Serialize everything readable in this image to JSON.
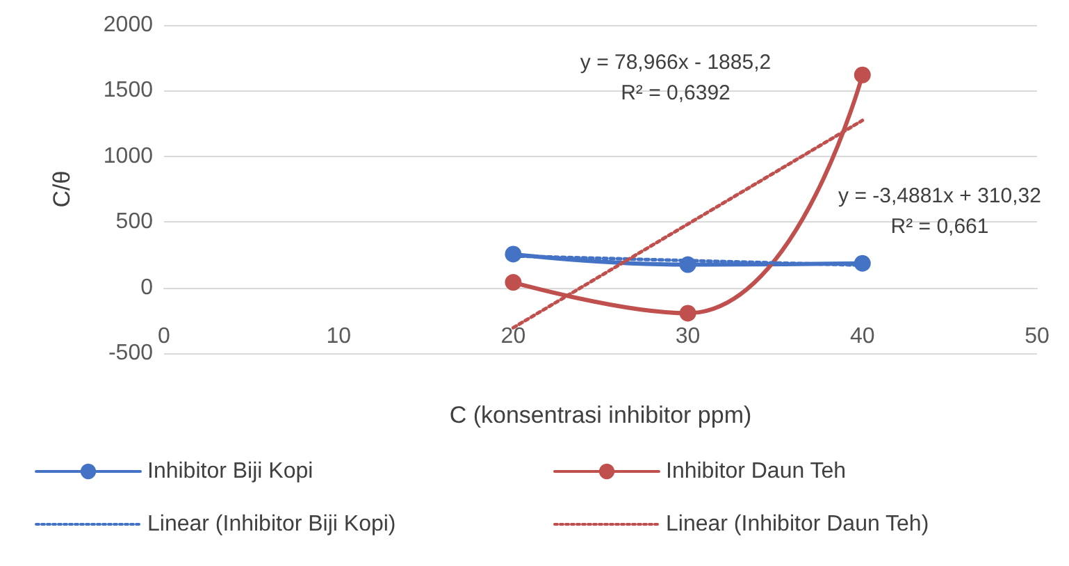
{
  "chart_data": {
    "type": "line",
    "xlabel": "C (konsentrasi inhibitor ppm)",
    "ylabel": "C/θ",
    "xlim": [
      0,
      50
    ],
    "xticks": [
      0,
      10,
      20,
      30,
      40,
      50
    ],
    "ylim": [
      -500,
      2000
    ],
    "yticks": [
      -500,
      0,
      500,
      1000,
      1500,
      2000
    ],
    "grid": "y",
    "legend": "bottom",
    "series": [
      {
        "name": "Inhibitor Biji Kopi",
        "color": "#4472c4",
        "x": [
          20,
          30,
          40
        ],
        "values": [
          255,
          175,
          185
        ],
        "marker": "circle",
        "line_style": "solid"
      },
      {
        "name": "Inhibitor Daun Teh",
        "color": "#c0504d",
        "x": [
          20,
          30,
          40
        ],
        "values": [
          40,
          -195,
          1620
        ],
        "marker": "circle",
        "line_style": "solid"
      },
      {
        "name": "Linear (Inhibitor Biji Kopi)",
        "color": "#4472c4",
        "x": [
          20,
          40
        ],
        "values": [
          240.6,
          170.8
        ],
        "marker": "none",
        "line_style": "dotted"
      },
      {
        "name": "Linear (Inhibitor Daun Teh)",
        "color": "#c0504d",
        "x": [
          20,
          40
        ],
        "values": [
          -306,
          1273.4
        ],
        "marker": "none",
        "line_style": "dotted"
      }
    ],
    "annotations": [
      "y = 78,966x - 1885,2\nR² = 0,6392",
      "y = -3,4881x + 310,32\nR² = 0,661"
    ]
  }
}
